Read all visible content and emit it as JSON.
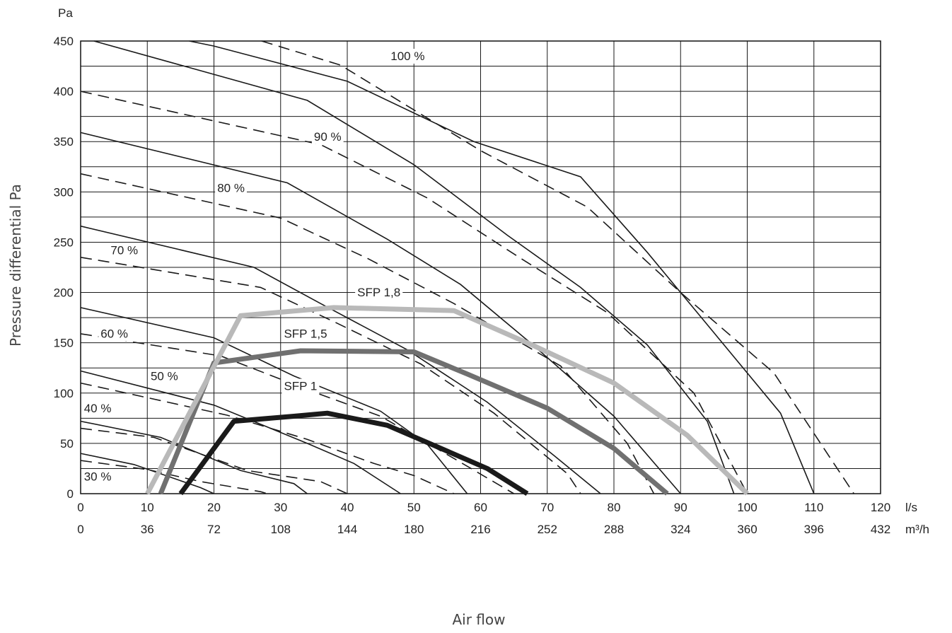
{
  "chart_data": {
    "type": "line",
    "title": "",
    "ylabel": "Pressure differential Pa",
    "yunit_label": "Pa",
    "xlabel": "Air flow",
    "x_primary_unit": "l/s",
    "x_secondary_unit": "m³/h",
    "xlim": [
      0,
      120
    ],
    "ylim": [
      0,
      450
    ],
    "grid": true,
    "x_ticks": [
      0,
      10,
      20,
      30,
      40,
      50,
      60,
      70,
      80,
      90,
      100,
      110,
      120
    ],
    "x_ticks_secondary": [
      "0",
      "36",
      "72",
      "108",
      "144",
      "180",
      "216",
      "252",
      "288",
      "324",
      "360",
      "396",
      "432"
    ],
    "y_ticks": [
      0,
      50,
      100,
      150,
      200,
      250,
      300,
      350,
      400,
      450
    ],
    "fan_curves": [
      {
        "label": "100 %",
        "label_at": [
          46.5,
          431
        ],
        "solid": [
          [
            0,
            472
          ],
          [
            20,
            445
          ],
          [
            40,
            410
          ],
          [
            59,
            350
          ],
          [
            75,
            315
          ],
          [
            85,
            240
          ],
          [
            95,
            160
          ],
          [
            105,
            80
          ],
          [
            110,
            0
          ]
        ],
        "dashed": [
          [
            0,
            505
          ],
          [
            39,
            426
          ],
          [
            60,
            341
          ],
          [
            76,
            285
          ],
          [
            90,
            200
          ],
          [
            104,
            120
          ],
          [
            116,
            0
          ]
        ]
      },
      {
        "label": "90 %",
        "label_at": [
          35,
          351
        ],
        "solid": [
          [
            2,
            450
          ],
          [
            34,
            391
          ],
          [
            50,
            327
          ],
          [
            64,
            257
          ],
          [
            75,
            205
          ],
          [
            85,
            148
          ],
          [
            94,
            72
          ],
          [
            98,
            0
          ]
        ],
        "dashed": [
          [
            0,
            400
          ],
          [
            36,
            347
          ],
          [
            52,
            294
          ],
          [
            66,
            234
          ],
          [
            79,
            180
          ],
          [
            92,
            100
          ],
          [
            100,
            0
          ]
        ]
      },
      {
        "label": "80 %",
        "label_at": [
          20.5,
          300
        ],
        "solid": [
          [
            0,
            359
          ],
          [
            31,
            309
          ],
          [
            46,
            253
          ],
          [
            57,
            208
          ],
          [
            68,
            147
          ],
          [
            80,
            77
          ],
          [
            90,
            0
          ]
        ],
        "dashed": [
          [
            0,
            318
          ],
          [
            30,
            274
          ],
          [
            43,
            234
          ],
          [
            56,
            189
          ],
          [
            72,
            127
          ],
          [
            82,
            50
          ],
          [
            86,
            0
          ]
        ]
      },
      {
        "label": "70 %",
        "label_at": [
          4.5,
          238
        ],
        "solid": [
          [
            0,
            266
          ],
          [
            26,
            225
          ],
          [
            36,
            189
          ],
          [
            49,
            143
          ],
          [
            61,
            91
          ],
          [
            71,
            38
          ],
          [
            78,
            0
          ]
        ],
        "dashed": [
          [
            0,
            235
          ],
          [
            27,
            205
          ],
          [
            38,
            171
          ],
          [
            51,
            129
          ],
          [
            62,
            80
          ],
          [
            73,
            20
          ],
          [
            75,
            0
          ]
        ]
      },
      {
        "label": "60 %",
        "label_at": [
          3,
          155
        ],
        "solid": [
          [
            0,
            185
          ],
          [
            20,
            155
          ],
          [
            32,
            117
          ],
          [
            45,
            82
          ],
          [
            52,
            49
          ],
          [
            58,
            0
          ]
        ],
        "dashed": [
          [
            0,
            159
          ],
          [
            21,
            137
          ],
          [
            35,
            101
          ],
          [
            45,
            77
          ],
          [
            56,
            35
          ],
          [
            65,
            0
          ]
        ]
      },
      {
        "label": "50 %",
        "label_at": [
          10.5,
          113
        ],
        "solid": [
          [
            0,
            122
          ],
          [
            20,
            88
          ],
          [
            34,
            50
          ],
          [
            41,
            30
          ],
          [
            48,
            0
          ]
        ],
        "dashed": [
          [
            0,
            110
          ],
          [
            22,
            78
          ],
          [
            34,
            54
          ],
          [
            44,
            30
          ],
          [
            50,
            18
          ],
          [
            56,
            0
          ]
        ]
      },
      {
        "label": "40 %",
        "label_at": [
          0.5,
          81
        ],
        "solid": [
          [
            0,
            72
          ],
          [
            12,
            56
          ],
          [
            24,
            23
          ],
          [
            32,
            10
          ],
          [
            34,
            0
          ]
        ],
        "dashed": [
          [
            0,
            65
          ],
          [
            11,
            56
          ],
          [
            25,
            23
          ],
          [
            36,
            12
          ],
          [
            40,
            0
          ]
        ]
      },
      {
        "label": "30 %",
        "label_at": [
          0.5,
          13
        ],
        "solid": [
          [
            0,
            40
          ],
          [
            8,
            29
          ],
          [
            18,
            6
          ],
          [
            20,
            0
          ]
        ],
        "dashed": [
          [
            0,
            33
          ],
          [
            10,
            24
          ],
          [
            18,
            12
          ],
          [
            27,
            2
          ],
          [
            28,
            0
          ]
        ]
      }
    ],
    "series": [
      {
        "name": "SFP 1",
        "color": "#1a1a1a",
        "label_at": [
          30.5,
          103
        ],
        "values": [
          [
            15,
            0
          ],
          [
            23,
            72
          ],
          [
            32,
            77
          ],
          [
            37,
            80
          ],
          [
            46,
            68
          ],
          [
            53,
            48
          ],
          [
            61,
            25
          ],
          [
            67,
            0
          ]
        ]
      },
      {
        "name": "SFP 1,5",
        "color": "#707070",
        "label_at": [
          30.5,
          155
        ],
        "values": [
          [
            12,
            0
          ],
          [
            20,
            130
          ],
          [
            33,
            142
          ],
          [
            50,
            141
          ],
          [
            58,
            119
          ],
          [
            70,
            85
          ],
          [
            80,
            45
          ],
          [
            88,
            0
          ]
        ]
      },
      {
        "name": "SFP 1,8",
        "color": "#b9b9b9",
        "label_at": [
          41.5,
          196
        ],
        "values": [
          [
            10,
            0
          ],
          [
            24,
            177
          ],
          [
            38,
            185
          ],
          [
            56,
            182
          ],
          [
            68,
            147
          ],
          [
            80,
            110
          ],
          [
            91,
            58
          ],
          [
            100,
            0
          ]
        ]
      }
    ]
  }
}
